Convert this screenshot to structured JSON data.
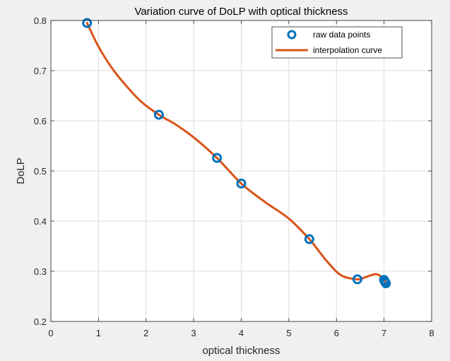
{
  "chart_data": {
    "type": "line",
    "title": "Variation curve of DoLP with optical thickness",
    "xlabel": "optical thickness",
    "ylabel": "DoLP",
    "xlim": [
      0,
      8
    ],
    "ylim": [
      0.2,
      0.8
    ],
    "xticks": [
      "0",
      "1",
      "2",
      "3",
      "4",
      "5",
      "6",
      "7",
      "8"
    ],
    "yticks": [
      "0.2",
      "0.3",
      "0.4",
      "0.5",
      "0.6",
      "0.7",
      "0.8"
    ],
    "grid": true,
    "legend_position": "top-right",
    "series": [
      {
        "name": "raw data points",
        "kind": "marker",
        "marker": "circle",
        "color": "#0072BD",
        "x": [
          0.76,
          2.27,
          3.49,
          4.0,
          5.43,
          6.44,
          7.0,
          7.02,
          7.04
        ],
        "y": [
          0.795,
          0.612,
          0.526,
          0.475,
          0.364,
          0.284,
          0.283,
          0.279,
          0.276
        ]
      },
      {
        "name": "interpolation curve",
        "kind": "line",
        "color": "#D95319",
        "x": [
          0.76,
          1.0,
          1.3,
          1.6,
          1.9,
          2.27,
          2.6,
          3.0,
          3.49,
          4.0,
          4.5,
          5.0,
          5.43,
          5.8,
          6.1,
          6.44,
          6.6,
          6.8,
          6.9,
          7.0,
          7.04
        ],
        "y": [
          0.795,
          0.748,
          0.703,
          0.668,
          0.638,
          0.612,
          0.594,
          0.567,
          0.526,
          0.475,
          0.438,
          0.405,
          0.364,
          0.32,
          0.292,
          0.284,
          0.288,
          0.294,
          0.292,
          0.283,
          0.276
        ]
      }
    ]
  }
}
